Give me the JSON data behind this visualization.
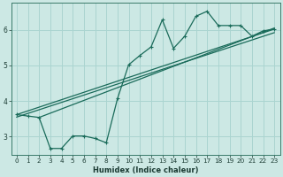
{
  "bg_color": "#cce8e4",
  "grid_color": "#aad4d0",
  "line_color": "#1a6b5a",
  "xlabel": "Humidex (Indice chaleur)",
  "xlim": [
    -0.5,
    23.5
  ],
  "ylim": [
    2.5,
    6.75
  ],
  "xticks": [
    0,
    1,
    2,
    3,
    4,
    5,
    6,
    7,
    8,
    9,
    10,
    11,
    12,
    13,
    14,
    15,
    16,
    17,
    18,
    19,
    20,
    21,
    22,
    23
  ],
  "yticks": [
    3,
    4,
    5,
    6
  ],
  "curve_x": [
    0,
    1,
    2,
    3,
    4,
    5,
    6,
    7,
    8,
    9,
    10,
    11,
    12,
    13,
    14,
    15,
    16,
    17,
    18,
    19,
    20,
    21,
    22,
    23
  ],
  "curve_y": [
    3.62,
    3.58,
    3.54,
    2.67,
    2.67,
    3.02,
    3.02,
    2.95,
    2.83,
    4.07,
    5.02,
    5.28,
    5.52,
    6.28,
    5.48,
    5.82,
    6.38,
    6.52,
    6.12,
    6.12,
    6.12,
    5.82,
    5.97,
    6.02
  ],
  "reg_line1_x": [
    0,
    23
  ],
  "reg_line1_y": [
    3.62,
    6.02
  ],
  "reg_line2_x": [
    0,
    23
  ],
  "reg_line2_y": [
    3.55,
    5.92
  ],
  "reg_line3_x": [
    2,
    23
  ],
  "reg_line3_y": [
    3.54,
    6.05
  ]
}
